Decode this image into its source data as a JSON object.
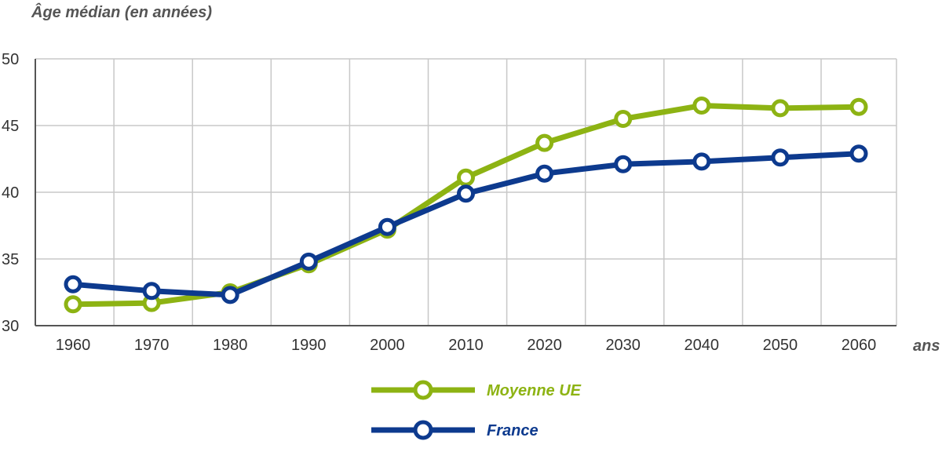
{
  "chart_data": {
    "type": "line",
    "ylabel": "Âge médian (en années)",
    "xlabel": "ans",
    "x": [
      1960,
      1970,
      1980,
      1990,
      2000,
      2010,
      2020,
      2030,
      2040,
      2050,
      2060
    ],
    "x_tick_labels": [
      "1960",
      "1970",
      "1980",
      "1990",
      "2000",
      "2010",
      "2020",
      "2030",
      "2040",
      "2050",
      "2060"
    ],
    "y_tick_labels": [
      "30",
      "35",
      "40",
      "45",
      "50"
    ],
    "y_ticks": [
      30,
      35,
      40,
      45,
      50
    ],
    "ylim": [
      30,
      50
    ],
    "grid": true,
    "legend_position": "bottom-center",
    "series": [
      {
        "name": "Moyenne UE",
        "color": "#8db313",
        "values": [
          31.6,
          31.7,
          32.5,
          34.6,
          37.2,
          41.1,
          43.7,
          45.5,
          46.5,
          46.3,
          46.4
        ]
      },
      {
        "name": "France",
        "color": "#0d3a8e",
        "values": [
          33.1,
          32.6,
          32.3,
          34.8,
          37.4,
          39.9,
          41.4,
          42.1,
          42.3,
          42.6,
          42.9
        ]
      }
    ]
  }
}
